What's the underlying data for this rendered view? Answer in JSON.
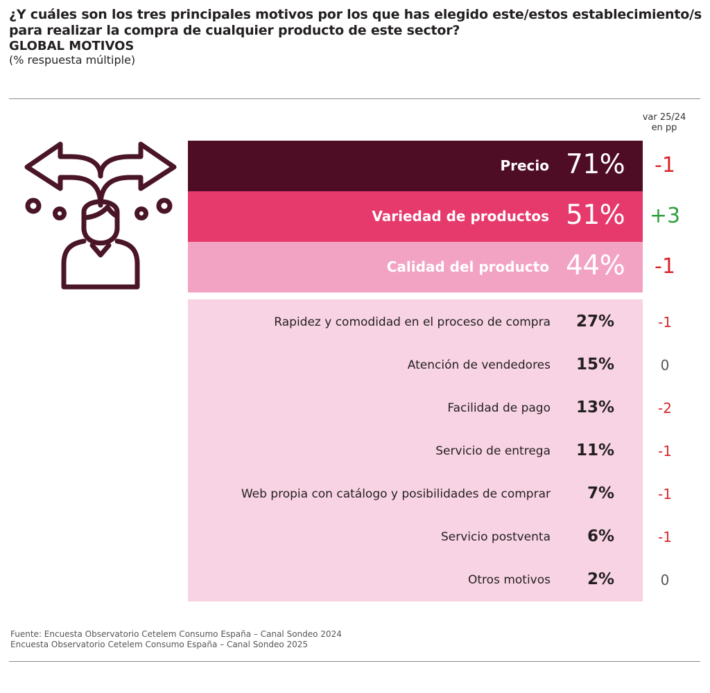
{
  "header": {
    "question": "¿Y cuáles son los tres principales motivos por los que has elegido este/estos establecimiento/s para realizar la compra de cualquier producto de este sector?",
    "subtitle": "GLOBAL MOTIVOS",
    "note": "(% respuesta múltiple)"
  },
  "var_header": {
    "line1": "var 25/24",
    "line2": "en pp"
  },
  "colors": {
    "dark": "#4e0c25",
    "strong": "#e6396c",
    "medium": "#f2a3c4",
    "light": "#f8d3e3",
    "negative": "#d7262b",
    "positive": "#2e9e3f",
    "neutral": "#555555",
    "icon": "#4a1526"
  },
  "icon": "decision-arrows-person-icon",
  "chart_data": {
    "type": "bar",
    "title": "GLOBAL MOTIVOS",
    "unit": "%",
    "variation_label": "var 25/24 en pp",
    "categories": [
      "Precio",
      "Variedad de productos",
      "Calidad del producto",
      "Rapidez y comodidad en el proceso de compra",
      "Atención de vendedores",
      "Facilidad de pago",
      "Servicio de entrega",
      "Web propia con catálogo y posibilidades de comprar",
      "Servicio postventa",
      "Otros motivos"
    ],
    "values": [
      71,
      51,
      44,
      27,
      15,
      13,
      11,
      7,
      6,
      2
    ],
    "value_labels": [
      "71%",
      "51%",
      "44%",
      "27%",
      "15%",
      "13%",
      "11%",
      "7%",
      "6%",
      "2%"
    ],
    "variation": [
      -1,
      3,
      -1,
      -1,
      0,
      -2,
      -1,
      -1,
      -1,
      0
    ],
    "variation_labels": [
      "-1",
      "+3",
      "-1",
      "-1",
      "0",
      "-2",
      "-1",
      "-1",
      "-1",
      "0"
    ]
  },
  "footer": {
    "line1": "Fuente: Encuesta Observatorio Cetelem Consumo España – Canal Sondeo 2024",
    "line2": "Encuesta Observatorio Cetelem Consumo España – Canal Sondeo 2025"
  }
}
